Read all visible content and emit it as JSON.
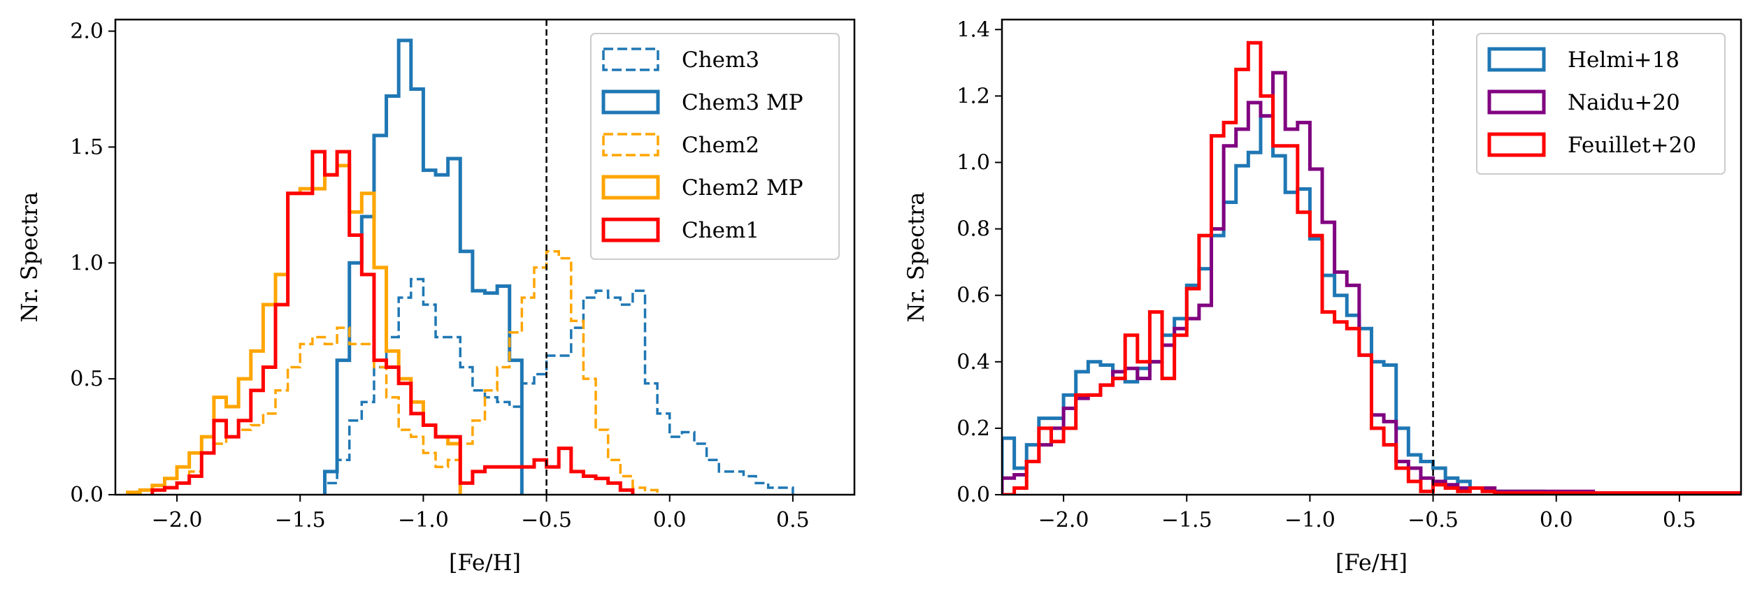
{
  "chart_data": [
    {
      "type": "histogram",
      "xlabel": "[Fe/H]",
      "ylabel": "Nr. Spectra",
      "xlim": [
        -2.25,
        0.75
      ],
      "ylim": [
        0,
        2.05
      ],
      "xticks": [
        -2.0,
        -1.5,
        -1.0,
        -0.5,
        0.0,
        0.5
      ],
      "xtick_labels": [
        "−2.0",
        "−1.5",
        "−1.0",
        "−0.5",
        "0.0",
        "0.5"
      ],
      "yticks": [
        0.0,
        0.5,
        1.0,
        1.5,
        2.0
      ],
      "ytick_labels": [
        "0.0",
        "0.5",
        "1.0",
        "1.5",
        "2.0"
      ],
      "vline": -0.5,
      "legend_position": "top-right",
      "bin_width": 0.05,
      "series": [
        {
          "name": "Chem3",
          "color": "#1f77b4",
          "linestyle": "dashed",
          "x0": -1.4,
          "values": [
            0.05,
            0.15,
            0.32,
            0.4,
            0.55,
            0.68,
            0.85,
            0.93,
            0.82,
            0.68,
            0.68,
            0.55,
            0.45,
            0.42,
            0.4,
            0.38,
            0.48,
            0.52,
            0.6,
            0.6,
            0.72,
            0.85,
            0.88,
            0.85,
            0.82,
            0.88,
            0.48,
            0.35,
            0.25,
            0.27,
            0.22,
            0.15,
            0.1,
            0.1,
            0.08,
            0.05,
            0.03,
            0.03
          ]
        },
        {
          "name": "Chem3 MP",
          "color": "#1f77b4",
          "linestyle": "solid",
          "x0": -1.4,
          "values": [
            0.1,
            0.58,
            1.0,
            1.2,
            1.55,
            1.72,
            1.96,
            1.75,
            1.4,
            1.38,
            1.45,
            1.05,
            0.88,
            0.87,
            0.9,
            0.58
          ]
        },
        {
          "name": "Chem2",
          "color": "#ffa500",
          "linestyle": "dashed",
          "x0": -2.1,
          "values": [
            0.02,
            0.03,
            0.05,
            0.1,
            0.18,
            0.22,
            0.25,
            0.28,
            0.3,
            0.35,
            0.45,
            0.55,
            0.65,
            0.68,
            0.65,
            0.72,
            0.65,
            0.65,
            0.55,
            0.42,
            0.28,
            0.25,
            0.18,
            0.12,
            0.15,
            0.22,
            0.32,
            0.45,
            0.55,
            0.7,
            0.85,
            0.98,
            1.05,
            1.02,
            0.75,
            0.5,
            0.28,
            0.15,
            0.08,
            0.03,
            0.02
          ]
        },
        {
          "name": "Chem2 MP",
          "color": "#ffa500",
          "linestyle": "solid",
          "x0": -2.2,
          "values": [
            0.01,
            0.02,
            0.04,
            0.07,
            0.12,
            0.18,
            0.25,
            0.42,
            0.38,
            0.5,
            0.62,
            0.82,
            0.95,
            1.3,
            1.32,
            1.32,
            1.38,
            1.42,
            1.22,
            1.3,
            0.98,
            0.62,
            0.5,
            0.4,
            0.3,
            0.25,
            0.22
          ]
        },
        {
          "name": "Chem1",
          "color": "#ff0000",
          "linestyle": "solid",
          "x0": -2.1,
          "values": [
            0.02,
            0.03,
            0.05,
            0.08,
            0.18,
            0.32,
            0.25,
            0.32,
            0.45,
            0.55,
            0.82,
            1.3,
            1.3,
            1.48,
            1.38,
            1.48,
            1.12,
            0.95,
            0.58,
            0.55,
            0.48,
            0.35,
            0.3,
            0.25,
            0.25,
            0.05,
            0.1,
            0.12,
            0.12,
            0.12,
            0.12,
            0.15,
            0.12,
            0.2,
            0.1,
            0.08,
            0.07,
            0.05,
            0.02
          ]
        }
      ]
    },
    {
      "type": "histogram",
      "xlabel": "[Fe/H]",
      "ylabel": "Nr. Spectra",
      "xlim": [
        -2.25,
        0.75
      ],
      "ylim": [
        0,
        1.43
      ],
      "xticks": [
        -2.0,
        -1.5,
        -1.0,
        -0.5,
        0.0,
        0.5
      ],
      "xtick_labels": [
        "−2.0",
        "−1.5",
        "−1.0",
        "−0.5",
        "0.0",
        "0.5"
      ],
      "yticks": [
        0.0,
        0.2,
        0.4,
        0.6,
        0.8,
        1.0,
        1.2,
        1.4
      ],
      "ytick_labels": [
        "0.0",
        "0.2",
        "0.4",
        "0.6",
        "0.8",
        "1.0",
        "1.2",
        "1.4"
      ],
      "vline": -0.5,
      "legend_position": "top-right",
      "bin_width": 0.05,
      "series": [
        {
          "name": "Helmi+18",
          "color": "#1f77b4",
          "linestyle": "solid",
          "x0": -2.25,
          "values": [
            0.17,
            0.08,
            0.15,
            0.23,
            0.23,
            0.3,
            0.37,
            0.4,
            0.39,
            0.35,
            0.34,
            0.38,
            0.4,
            0.48,
            0.53,
            0.63,
            0.68,
            0.78,
            0.88,
            0.99,
            1.03,
            1.14,
            1.02,
            0.91,
            0.92,
            0.77,
            0.66,
            0.6,
            0.54,
            0.5,
            0.4,
            0.39,
            0.2,
            0.12,
            0.1,
            0.08,
            0.05,
            0.04,
            0.02,
            0.02,
            0.01,
            0.01,
            0.01,
            0.01,
            0.005,
            0.005,
            0.005,
            0.005,
            0.005,
            0.005,
            0.005,
            0.005,
            0.005,
            0.005,
            0.005,
            0.005,
            0.005,
            0.005,
            0.005,
            0.005
          ]
        },
        {
          "name": "Naidu+20",
          "color": "#800080",
          "linestyle": "solid",
          "x0": -2.25,
          "values": [
            0.05,
            0.06,
            0.1,
            0.15,
            0.2,
            0.26,
            0.29,
            0.3,
            0.33,
            0.37,
            0.38,
            0.35,
            0.4,
            0.45,
            0.5,
            0.53,
            0.57,
            0.8,
            1.05,
            1.1,
            1.18,
            1.14,
            1.27,
            1.1,
            1.12,
            0.98,
            0.82,
            0.67,
            0.63,
            0.42,
            0.24,
            0.22,
            0.1,
            0.08,
            0.05,
            0.04,
            0.03,
            0.02,
            0.02,
            0.02,
            0.01,
            0.01,
            0.01,
            0.01,
            0.01,
            0.01,
            0.01,
            0.01,
            0.005,
            0.005,
            0.005,
            0.005,
            0.005,
            0.005,
            0.005,
            0.005,
            0.005,
            0.005,
            0.005,
            0.005
          ]
        },
        {
          "name": "Feuillet+20",
          "color": "#ff0000",
          "linestyle": "solid",
          "x0": -2.25,
          "values": [
            0.0,
            0.02,
            0.1,
            0.2,
            0.16,
            0.2,
            0.3,
            0.3,
            0.33,
            0.35,
            0.48,
            0.4,
            0.55,
            0.35,
            0.48,
            0.62,
            0.78,
            1.08,
            1.12,
            1.28,
            1.36,
            1.2,
            1.05,
            1.05,
            0.85,
            0.78,
            0.55,
            0.52,
            0.5,
            0.42,
            0.2,
            0.15,
            0.08,
            0.04,
            0.01,
            0.03,
            0.02,
            0.01,
            0.02,
            0.01,
            0.005,
            0.005,
            0.005,
            0.005,
            0.005,
            0.005,
            0.005,
            0.005,
            0.005,
            0.005,
            0.005,
            0.005,
            0.005,
            0.005,
            0.005,
            0.005,
            0.005,
            0.005,
            0.005,
            0.005
          ]
        }
      ]
    }
  ]
}
